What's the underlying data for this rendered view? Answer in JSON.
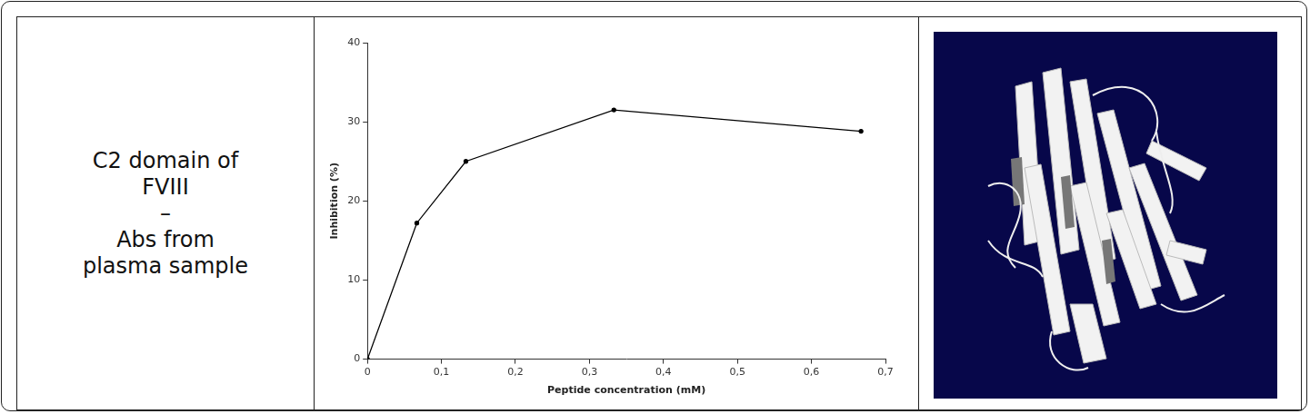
{
  "panel_label": {
    "lines": [
      "C2 domain of",
      "FVIII",
      "–",
      "Abs from",
      "plasma sample"
    ]
  },
  "chart_data": {
    "type": "line",
    "x_label": "Peptide concentration (mM)",
    "y_label": "Inhibition (%)",
    "x": [
      0,
      0.0667,
      0.133,
      0.333,
      0.667
    ],
    "values": [
      0,
      17.2,
      25.0,
      31.5,
      28.8
    ],
    "color": "#000000",
    "marker": "circle",
    "xlim": [
      0,
      0.7
    ],
    "xticks": [
      0,
      {
        "value": 0.1,
        "label": "0,1"
      },
      {
        "value": 0.2,
        "label": "0,2"
      },
      {
        "value": 0.3,
        "label": "0,3"
      },
      {
        "value": 0.4,
        "label": "0,4"
      },
      {
        "value": 0.5,
        "label": "0,5"
      },
      {
        "value": 0.6,
        "label": "0,6"
      },
      {
        "value": 0.7,
        "label": "0,7"
      }
    ],
    "ylim": [
      0,
      40
    ],
    "yticks": [
      0,
      10,
      20,
      30,
      40
    ],
    "grid": false
  }
}
